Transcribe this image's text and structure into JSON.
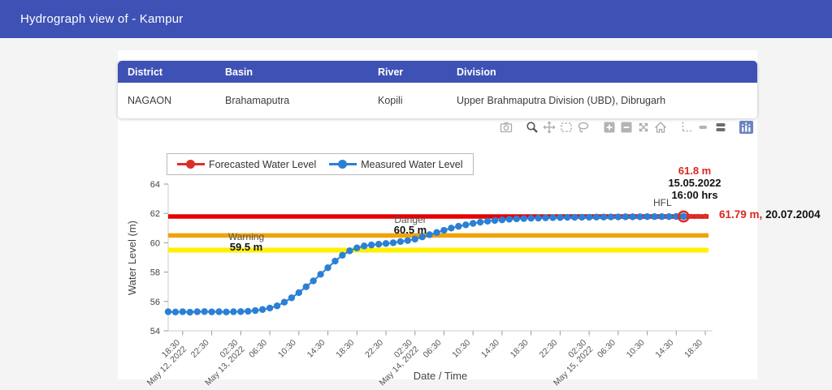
{
  "header": {
    "title": "Hydrograph view of - Kampur"
  },
  "station_table": {
    "columns": [
      "District",
      "Basin",
      "River",
      "Division"
    ],
    "rows": [
      [
        "NAGAON",
        "Brahamaputra",
        "Kopili",
        "Upper Brahmaputra Division (UBD), Dibrugarh"
      ]
    ]
  },
  "modebar": {
    "icons": [
      "camera",
      "zoom",
      "pan",
      "box-select",
      "lasso-select",
      "zoom-in",
      "zoom-out",
      "autoscale",
      "reset-axes",
      "toggle-spikelines",
      "hover-closest",
      "hover-compare",
      "plotly-logo"
    ]
  },
  "chart_data": {
    "type": "line",
    "title": "",
    "xlabel": "Date / Time",
    "ylabel": "Water Level (m)",
    "ylim": [
      54,
      64
    ],
    "yticks": [
      54,
      56,
      58,
      60,
      62,
      64
    ],
    "x_axis_window_hours": [
      0,
      75
    ],
    "xtick_first_hour": 2,
    "xtick_step_hours": 4,
    "xticks": [
      {
        "time": "18:30",
        "date": "May 12, 2022"
      },
      {
        "time": "22:30"
      },
      {
        "time": "02:30",
        "date": "May 13, 2022"
      },
      {
        "time": "06:30"
      },
      {
        "time": "10:30"
      },
      {
        "time": "14:30"
      },
      {
        "time": "18:30"
      },
      {
        "time": "22:30"
      },
      {
        "time": "02:30",
        "date": "May 14, 2022"
      },
      {
        "time": "06:30"
      },
      {
        "time": "10:30"
      },
      {
        "time": "14:30"
      },
      {
        "time": "18:30"
      },
      {
        "time": "22:30"
      },
      {
        "time": "02:30",
        "date": "May 15, 2022"
      },
      {
        "time": "06:30"
      },
      {
        "time": "10:30"
      },
      {
        "time": "14:30"
      },
      {
        "time": "18:30"
      }
    ],
    "series": [
      {
        "name": "Forecasted Water Level",
        "color": "#db2f27",
        "x_start": 71,
        "x_step_hours": 1,
        "values": [
          61.79,
          61.8,
          61.8,
          61.81
        ]
      },
      {
        "name": "Measured Water Level",
        "color": "#2b80d5",
        "x_start": 0,
        "x_step_hours": 1,
        "values": [
          55.3,
          55.28,
          55.3,
          55.27,
          55.3,
          55.31,
          55.29,
          55.3,
          55.28,
          55.3,
          55.31,
          55.33,
          55.38,
          55.45,
          55.55,
          55.7,
          55.95,
          56.25,
          56.6,
          57.0,
          57.4,
          57.85,
          58.3,
          58.75,
          59.15,
          59.45,
          59.65,
          59.78,
          59.85,
          59.9,
          59.95,
          60.0,
          60.08,
          60.15,
          60.25,
          60.4,
          60.55,
          60.7,
          60.85,
          61.0,
          61.12,
          61.22,
          61.32,
          61.4,
          61.47,
          61.52,
          61.56,
          61.6,
          61.63,
          61.65,
          61.67,
          61.68,
          61.7,
          61.71,
          61.72,
          61.73,
          61.73,
          61.74,
          61.74,
          61.75,
          61.75,
          61.76,
          61.76,
          61.77,
          61.77,
          61.77,
          61.78,
          61.78,
          61.78,
          61.78,
          61.79,
          61.79
        ]
      }
    ],
    "reference_lines": [
      {
        "name": "HFL",
        "value": 61.79,
        "color": "#e60000",
        "width": 5.5
      },
      {
        "name": "Danger",
        "value": 60.5,
        "color": "#f0a30a",
        "width": 5.5
      },
      {
        "name": "Warning",
        "value": 59.5,
        "color": "#fff000",
        "width": 6
      }
    ],
    "annotations": {
      "peak": {
        "value": "61.8 m",
        "date": "15.05.2022",
        "time": "16:00 hrs"
      },
      "hfl_label": "HFL",
      "hfl_value": "61.79 m,",
      "hfl_date": "20.07.2004",
      "danger_label": "Danger",
      "danger_value": "60.5 m",
      "warning_label": "Warning",
      "warning_value": "59.5 m"
    }
  }
}
